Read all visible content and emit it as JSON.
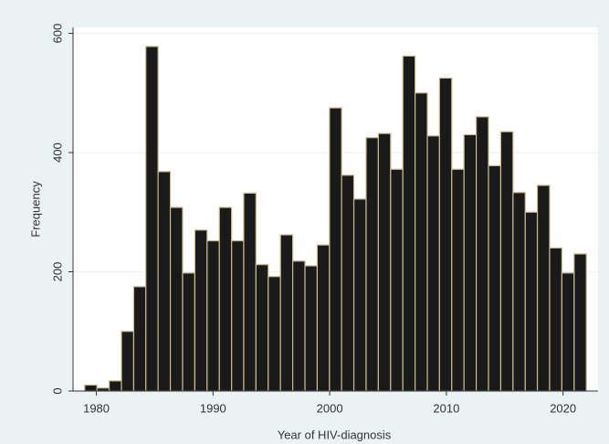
{
  "chart_data": {
    "type": "histogram",
    "x_label": "Year of HIV-diagnosis",
    "y_label": "Frequency",
    "bins": [
      1979.0,
      1980.05,
      1981.1,
      1982.15,
      1983.2,
      1984.24,
      1985.29,
      1986.34,
      1987.39,
      1988.44,
      1989.49,
      1990.54,
      1991.59,
      1992.63,
      1993.68,
      1994.73,
      1995.78,
      1996.83,
      1997.88,
      1998.93,
      1999.98,
      2001.02,
      2002.07,
      2003.12,
      2004.17,
      2005.22,
      2006.27,
      2007.32,
      2008.37,
      2009.41,
      2010.46,
      2011.51,
      2012.56,
      2013.61,
      2014.66,
      2015.71,
      2016.76,
      2017.8,
      2018.85,
      2019.9,
      2020.95,
      2022.0
    ],
    "values": [
      10,
      5,
      17,
      100,
      175,
      578,
      368,
      308,
      198,
      270,
      252,
      308,
      252,
      332,
      212,
      192,
      262,
      218,
      210,
      245,
      475,
      362,
      322,
      425,
      432,
      372,
      562,
      500,
      428,
      525,
      372,
      430,
      460,
      378,
      435,
      333,
      300,
      345,
      240,
      198,
      230
    ],
    "color": "#1a1a1a",
    "edge_color": "#c9b98c",
    "xlim": [
      1978,
      2023
    ],
    "xticks": [
      1980,
      1990,
      2000,
      2010,
      2020
    ],
    "ylim": [
      0,
      610
    ],
    "yticks": [
      0,
      200,
      400,
      600
    ],
    "grid": true
  }
}
